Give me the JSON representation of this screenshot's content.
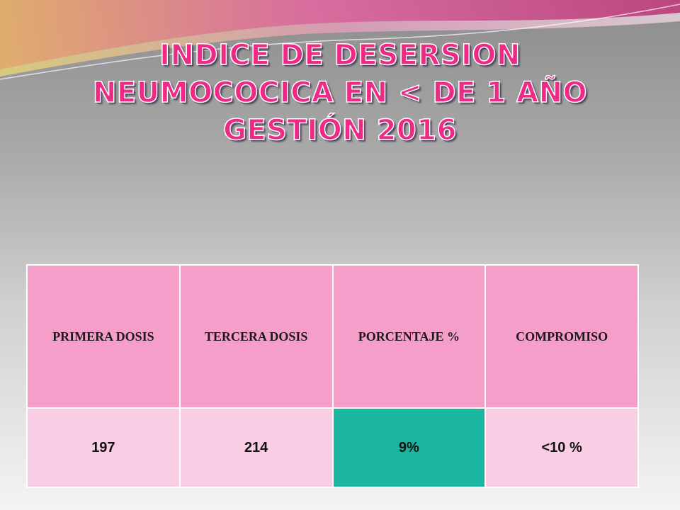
{
  "title": {
    "line1": "INDICE DE DESERSION",
    "line2": "NEUMOCOCICA EN < DE 1 AÑO",
    "line3": "GESTIÓN 2016"
  },
  "table": {
    "headers": [
      "PRIMERA DOSIS",
      "TERCERA DOSIS",
      "PORCENTAJE  %",
      "COMPROMISO"
    ],
    "row": [
      "197",
      "214",
      "9%",
      "<10 %"
    ]
  },
  "colors": {
    "title": "#ee2a86",
    "header_bg": "#f59ec9",
    "cell_bg": "#f9cde3",
    "highlight_bg": "#1ab6a0"
  }
}
